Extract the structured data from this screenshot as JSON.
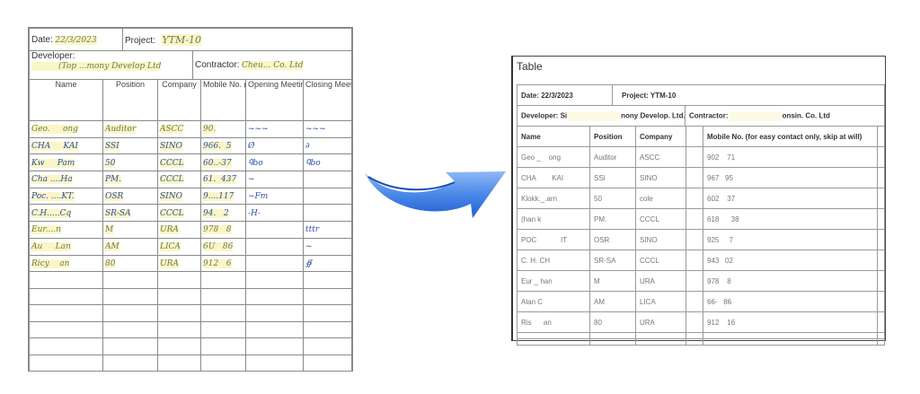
{
  "handwritten_form": {
    "date_label": "Date:",
    "date_value": "22/3/2023",
    "project_label": "Project:",
    "project_value": "YTM-10",
    "developer_label": "Developer:",
    "developer_value": "(Top ...mony Develop Ltd",
    "contractor_label": "Contractor:",
    "contractor_value": "Cheu...   Co. Ltd",
    "columns": [
      "Name",
      "Position",
      "Company",
      "Mobile No. (for easy contact only, skip at will)",
      "Opening Meeting (Initial)",
      "Closing Meeting (Initial)"
    ],
    "rows": [
      [
        "Geo.     ong",
        "Auditor",
        "ASCC",
        "90.",
        "~~~",
        "~~~"
      ],
      [
        "CHA     KAI",
        "SSI",
        "SINO",
        "966.  5",
        "Ø",
        "∂"
      ],
      [
        "Kw     Pam",
        "50",
        "CCCL",
        "60..-37",
        "Ꮔbo",
        "Ꮔbo"
      ],
      [
        "Cha ....Ha",
        "PM.",
        "CCCL",
        "61.  437",
        "~",
        ""
      ],
      [
        "Poc. ....KT.",
        "OSR",
        "SINO",
        "9....117",
        "~Fm",
        ""
      ],
      [
        "C.H.....Cq",
        "SR-SA",
        "CCCL",
        "94.   2",
        "-H-",
        ""
      ],
      [
        "Eur....n",
        "M",
        "URA",
        "978   8",
        "",
        "tttr"
      ],
      [
        "Au     Lan",
        "AM",
        "LICA",
        "6U   86",
        "",
        "~"
      ],
      [
        "Ricy    an",
        "80",
        "URA",
        "912   6",
        "",
        "∯"
      ]
    ],
    "empty_rows": 6
  },
  "arrow": {
    "icon": "curved-arrow-right-icon",
    "color": "#3a7be0"
  },
  "table_window": {
    "title": "Table",
    "date": "Date: 22/3/2023",
    "project": "Project: YTM-10",
    "developer_prefix": "Developer: Si",
    "developer_suffix": "nony Develop. Ltd.",
    "contractor_prefix": "Contractor:",
    "contractor_suffix": "onsin. Co. Ltd",
    "columns": [
      "Name",
      "Position",
      "Company",
      "",
      "Mobile No. (for easy contact only, skip at will)",
      ""
    ],
    "rows": [
      [
        "Geo _    ong",
        "Auditor",
        "ASCC",
        "",
        "902    71",
        ""
      ],
      [
        "CHA        KAI",
        "SSI",
        "SINO",
        "",
        "967   95",
        ""
      ],
      [
        "Klokk._.arn",
        "50",
        "cole",
        "",
        "602    37",
        ""
      ],
      [
        "(han k",
        "PM.",
        "CCCL",
        "",
        "618      38",
        ""
      ],
      [
        "POC            IT",
        "OSR",
        "SINO",
        "",
        "925     7",
        ""
      ],
      [
        "C. H. CH",
        "SR-SA",
        "CCCL",
        "",
        "943   02",
        ""
      ],
      [
        "Eur _ han",
        "M",
        "URA",
        "",
        "978    8",
        ""
      ],
      [
        "Alan C",
        "AM",
        "LICA",
        "",
        "66-   86",
        ""
      ],
      [
        "Ris      an",
        "80",
        "URA",
        "",
        "912    16",
        ""
      ]
    ]
  }
}
